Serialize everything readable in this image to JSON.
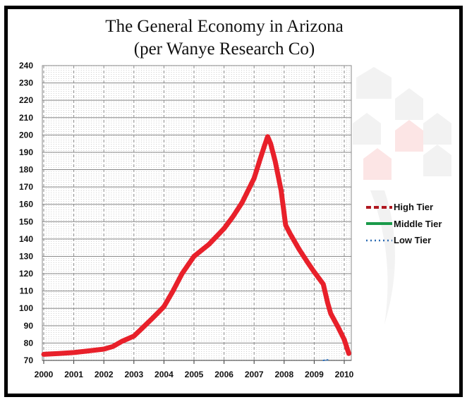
{
  "chart_data": {
    "type": "line",
    "title": "The General Economy in Arizona",
    "subtitle": "(per Wanye Research Co)",
    "xlabel": "",
    "ylabel": "",
    "xlim": [
      2000,
      2010.3
    ],
    "ylim": [
      70,
      240
    ],
    "yticks": [
      70,
      80,
      90,
      100,
      110,
      120,
      130,
      140,
      150,
      160,
      170,
      180,
      190,
      200,
      210,
      220,
      230,
      240
    ],
    "xticks": [
      2000,
      2001,
      2002,
      2003,
      2004,
      2005,
      2006,
      2007,
      2008,
      2009,
      2010
    ],
    "grid": true,
    "legend_position": "right",
    "legend": [
      "High Tier",
      "Middle Tier",
      "Low Tier"
    ],
    "series": [
      {
        "name": "High Tier",
        "color": "#e8202a",
        "x": [
          2000,
          2000.5,
          2001,
          2001.5,
          2002,
          2002.3,
          2002.6,
          2003,
          2003.3,
          2003.6,
          2004,
          2004.3,
          2004.6,
          2005,
          2005.5,
          2006,
          2006.3,
          2006.6,
          2007,
          2007.2,
          2007.35,
          2007.45,
          2007.55,
          2007.7,
          2007.9,
          2008.05,
          2008.2,
          2008.5,
          2008.8,
          2009,
          2009.3,
          2009.45,
          2009.55,
          2009.8,
          2010,
          2010.15
        ],
        "y": [
          73.5,
          74,
          74.5,
          75.5,
          76.5,
          78,
          81,
          84,
          89,
          94,
          101,
          110,
          120,
          130,
          137,
          146,
          153,
          161,
          175,
          186,
          194,
          199,
          195,
          185,
          168,
          148,
          143,
          134,
          126,
          121,
          114,
          103,
          97,
          89,
          82,
          74
        ]
      },
      {
        "name": "Middle Tier",
        "color": "#1a9a4a",
        "x": [],
        "y": []
      },
      {
        "name": "Low Tier",
        "color": "#2e6db4",
        "x": [
          2009.3,
          2009.45
        ],
        "y": [
          70,
          70.3
        ]
      }
    ]
  }
}
